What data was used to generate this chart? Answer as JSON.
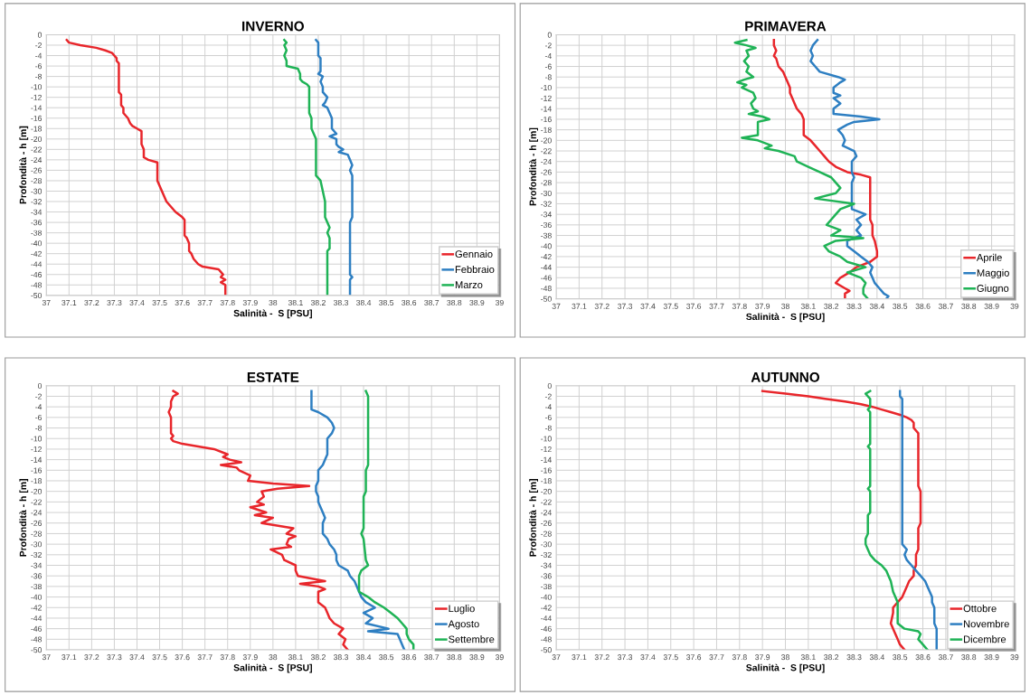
{
  "chart_data": [
    {
      "type": "line",
      "title": "INVERNO",
      "xlabel": "Salinità -  S [PSU]",
      "ylabel": "Profondità - h [m]",
      "xlim": [
        37,
        39
      ],
      "ylim": [
        -50,
        0
      ],
      "xticks": [
        37,
        37.1,
        37.2,
        37.3,
        37.4,
        37.5,
        37.6,
        37.7,
        37.8,
        37.9,
        38,
        38.1,
        38.2,
        38.3,
        38.4,
        38.5,
        38.6,
        38.7,
        38.8,
        38.9,
        39
      ],
      "yticks": [
        0,
        -2,
        -4,
        -6,
        -8,
        -10,
        -12,
        -14,
        -16,
        -18,
        -20,
        -22,
        -24,
        -26,
        -28,
        -30,
        -32,
        -34,
        -36,
        -38,
        -40,
        -42,
        -44,
        -46,
        -48,
        -50
      ],
      "grid": true,
      "legend": "bottom right",
      "marker": "none",
      "line_style": "solid",
      "series": [
        {
          "name": "Gennaio",
          "color": "#e8262b",
          "x": [
            37.09,
            37.1,
            37.15,
            37.22,
            37.26,
            37.29,
            37.3,
            37.31,
            37.31,
            37.32,
            37.32,
            37.32,
            37.33,
            37.33,
            37.34,
            37.34,
            37.36,
            37.37,
            37.38,
            37.4,
            37.42,
            37.42,
            37.43,
            37.43,
            37.45,
            37.49,
            37.49,
            37.5,
            37.51,
            37.52,
            37.53,
            37.55,
            37.57,
            37.6,
            37.61,
            37.61,
            37.62,
            37.63,
            37.63,
            37.64,
            37.65,
            37.67,
            37.69,
            37.76,
            37.77,
            37.78,
            37.77,
            37.79,
            37.77,
            37.79,
            37.79
          ],
          "values": [
            -1,
            -1.5,
            -2,
            -2.5,
            -3,
            -3.5,
            -4,
            -4.5,
            -5,
            -5.5,
            -8,
            -11,
            -11.5,
            -13.5,
            -14,
            -15,
            -16,
            -17,
            -17.5,
            -18,
            -18.5,
            -21,
            -22,
            -23.5,
            -24,
            -24.5,
            -28,
            -29,
            -30,
            -31,
            -32,
            -33,
            -34,
            -35,
            -35.5,
            -38.5,
            -39,
            -40,
            -41.5,
            -42,
            -43,
            -44,
            -44.5,
            -45,
            -45.5,
            -46,
            -46.5,
            -47,
            -47.5,
            -48,
            -50
          ]
        },
        {
          "name": "Febbraio",
          "color": "#2e7fc2",
          "x": [
            38.19,
            38.2,
            38.2,
            38.21,
            38.21,
            38.2,
            38.22,
            38.21,
            38.22,
            38.22,
            38.24,
            38.23,
            38.22,
            38.24,
            38.25,
            38.26,
            38.26,
            38.28,
            38.25,
            38.28,
            38.28,
            38.29,
            38.31,
            38.29,
            38.33,
            38.34,
            38.35,
            38.34,
            38.35,
            38.35,
            38.35,
            38.34,
            38.34,
            38.35,
            38.34,
            38.34
          ],
          "values": [
            -1,
            -1.5,
            -4,
            -4.5,
            -7,
            -7.5,
            -8,
            -9,
            -10,
            -11,
            -12,
            -13,
            -13.5,
            -14,
            -15,
            -16,
            -18,
            -19,
            -19.5,
            -20,
            -21,
            -21.5,
            -22,
            -22.5,
            -23,
            -24,
            -25,
            -26,
            -27,
            -28,
            -35,
            -36,
            -46,
            -46.5,
            -47,
            -50
          ]
        },
        {
          "name": "Marzo",
          "color": "#1fb356",
          "x": [
            38.05,
            38.06,
            38.05,
            38.06,
            38.05,
            38.06,
            38.06,
            38.08,
            38.11,
            38.12,
            38.12,
            38.13,
            38.15,
            38.16,
            38.16,
            38.17,
            38.17,
            38.18,
            38.19,
            38.19,
            38.21,
            38.22,
            38.23,
            38.23,
            38.24,
            38.25,
            38.24,
            38.25,
            38.25,
            38.24,
            38.24
          ],
          "values": [
            -1,
            -1.5,
            -2,
            -3,
            -4,
            -5,
            -6,
            -6.2,
            -6.5,
            -7.5,
            -8.5,
            -9,
            -9.5,
            -10,
            -15,
            -16,
            -18,
            -19,
            -20,
            -27,
            -28,
            -30,
            -32,
            -35,
            -36,
            -37,
            -38,
            -39,
            -41,
            -41.5,
            -50
          ]
        }
      ]
    },
    {
      "type": "line",
      "title": "PRIMAVERA",
      "xlabel": "Salinità -  S [PSU]",
      "ylabel": "Profondità - h [m]",
      "xlim": [
        37,
        39
      ],
      "ylim": [
        -50,
        0
      ],
      "xticks": [
        37,
        37.1,
        37.2,
        37.3,
        37.4,
        37.5,
        37.6,
        37.7,
        37.8,
        37.9,
        38,
        38.1,
        38.2,
        38.3,
        38.4,
        38.5,
        38.6,
        38.7,
        38.8,
        38.9,
        39
      ],
      "yticks": [
        0,
        -2,
        -4,
        -6,
        -8,
        -10,
        -12,
        -14,
        -16,
        -18,
        -20,
        -22,
        -24,
        -26,
        -28,
        -30,
        -32,
        -34,
        -36,
        -38,
        -40,
        -42,
        -44,
        -46,
        -48,
        -50
      ],
      "grid": true,
      "legend": "bottom right",
      "marker": "none",
      "line_style": "solid",
      "series": [
        {
          "name": "Aprile",
          "color": "#e8262b",
          "x": [
            37.95,
            37.95,
            37.96,
            37.95,
            37.96,
            37.97,
            37.99,
            38.0,
            38.01,
            38.02,
            38.02,
            38.03,
            38.04,
            38.05,
            38.07,
            38.08,
            38.08,
            38.11,
            38.13,
            38.15,
            38.17,
            38.19,
            38.22,
            38.27,
            38.33,
            38.37,
            38.37,
            38.37,
            38.38,
            38.38,
            38.39,
            38.4,
            38.4,
            38.37,
            38.31,
            38.28,
            38.24,
            38.22,
            38.26,
            38.28,
            38.26,
            38.26
          ],
          "values": [
            -1,
            -2,
            -3,
            -4,
            -4.5,
            -6,
            -7,
            -8,
            -9,
            -10,
            -11,
            -12,
            -13,
            -14,
            -15,
            -16,
            -19,
            -20,
            -21,
            -22,
            -23,
            -24,
            -25,
            -26,
            -26.5,
            -27,
            -33,
            -35,
            -36,
            -38,
            -39,
            -41,
            -42,
            -43,
            -44,
            -45,
            -46,
            -47,
            -48,
            -48.5,
            -49,
            -50
          ]
        },
        {
          "name": "Maggio",
          "color": "#2e7fc2",
          "x": [
            38.14,
            38.12,
            38.11,
            38.12,
            38.11,
            38.13,
            38.15,
            38.23,
            38.26,
            38.24,
            38.21,
            38.21,
            38.24,
            38.21,
            38.24,
            38.21,
            38.21,
            38.33,
            38.41,
            38.3,
            38.27,
            38.23,
            38.25,
            38.26,
            38.25,
            38.3,
            38.31,
            38.29,
            38.29,
            38.3,
            38.29,
            38.29,
            38.35,
            38.31,
            38.33,
            38.31,
            38.33,
            38.27,
            38.27,
            38.3,
            38.33,
            38.36,
            38.38,
            38.37,
            38.38,
            38.39,
            38.41,
            38.43,
            38.45,
            38.44
          ],
          "values": [
            -1,
            -2,
            -3,
            -4,
            -5,
            -6,
            -7,
            -8,
            -8.5,
            -9,
            -10,
            -11,
            -11.5,
            -12,
            -13,
            -14,
            -15,
            -15.5,
            -16,
            -16.5,
            -17,
            -18,
            -19,
            -20,
            -21,
            -22,
            -23,
            -24,
            -26,
            -27,
            -28,
            -33,
            -34,
            -35,
            -36,
            -37,
            -38,
            -39,
            -40,
            -41,
            -42,
            -43,
            -44,
            -45,
            -46,
            -47,
            -48,
            -49,
            -49.5,
            -50
          ]
        },
        {
          "name": "Giugno",
          "color": "#1fb356",
          "x": [
            37.83,
            37.78,
            37.83,
            37.87,
            37.83,
            37.84,
            37.82,
            37.84,
            37.83,
            37.86,
            37.82,
            37.79,
            37.83,
            37.81,
            37.86,
            37.87,
            37.85,
            37.86,
            37.88,
            37.84,
            37.9,
            37.93,
            37.88,
            37.88,
            37.81,
            37.88,
            37.94,
            37.91,
            37.97,
            38.04,
            38.05,
            38.1,
            38.15,
            38.2,
            38.22,
            38.24,
            38.22,
            38.13,
            38.3,
            38.24,
            38.22,
            38.2,
            38.18,
            38.24,
            38.2,
            38.34,
            38.22,
            38.17,
            38.19,
            38.24,
            38.27,
            38.35,
            38.27,
            38.33,
            38.35,
            38.34,
            38.34,
            38.36
          ],
          "values": [
            -1,
            -1.5,
            -2,
            -2.5,
            -3,
            -4,
            -5,
            -6,
            -7,
            -8,
            -8.5,
            -9,
            -9.5,
            -10,
            -11,
            -12,
            -13,
            -14,
            -14.5,
            -15,
            -15.5,
            -16,
            -16.5,
            -19,
            -19.5,
            -20,
            -21,
            -21.5,
            -22,
            -23,
            -24,
            -25,
            -26,
            -27,
            -28,
            -29,
            -30,
            -31,
            -32,
            -33,
            -34,
            -35,
            -36,
            -37,
            -38,
            -38.5,
            -39,
            -40,
            -41,
            -42,
            -43,
            -44,
            -45,
            -46,
            -47,
            -48,
            -49,
            -50
          ]
        }
      ]
    },
    {
      "type": "line",
      "title": "ESTATE",
      "xlabel": "Salinità -  S [PSU]",
      "ylabel": "Profondità - h [m]",
      "xlim": [
        37,
        39
      ],
      "ylim": [
        -50,
        0
      ],
      "xticks": [
        37,
        37.1,
        37.2,
        37.3,
        37.4,
        37.5,
        37.6,
        37.7,
        37.8,
        37.9,
        38,
        38.1,
        38.2,
        38.3,
        38.4,
        38.5,
        38.6,
        38.7,
        38.8,
        38.9,
        39
      ],
      "yticks": [
        0,
        -2,
        -4,
        -6,
        -8,
        -10,
        -12,
        -14,
        -16,
        -18,
        -20,
        -22,
        -24,
        -26,
        -28,
        -30,
        -32,
        -34,
        -36,
        -38,
        -40,
        -42,
        -44,
        -46,
        -48,
        -50
      ],
      "grid": true,
      "legend": "bottom right",
      "marker": "none",
      "line_style": "solid",
      "series": [
        {
          "name": "Luglio",
          "color": "#e8262b",
          "x": [
            37.56,
            37.58,
            37.56,
            37.55,
            37.55,
            37.54,
            37.55,
            37.55,
            37.56,
            37.55,
            37.56,
            37.6,
            37.74,
            37.8,
            37.78,
            37.81,
            37.86,
            37.77,
            37.84,
            37.85,
            37.9,
            37.89,
            38.0,
            38.16,
            38.02,
            37.95,
            37.96,
            37.93,
            37.96,
            37.9,
            37.97,
            37.92,
            38.0,
            37.95,
            38.09,
            38.06,
            38.1,
            38.07,
            38.06,
            38.08,
            37.99,
            38.04,
            38.05,
            38.1,
            38.1,
            38.11,
            38.23,
            38.12,
            38.2,
            38.23,
            38.2,
            38.2,
            38.2,
            38.23,
            38.24,
            38.25,
            38.27,
            38.31,
            38.29,
            38.32,
            38.31,
            38.33
          ],
          "values": [
            -1,
            -1.5,
            -2,
            -3,
            -4,
            -5,
            -6,
            -9,
            -9.5,
            -10,
            -10.5,
            -11,
            -12,
            -13,
            -13.5,
            -14,
            -14.5,
            -15,
            -15.5,
            -16,
            -17,
            -18,
            -18.5,
            -19,
            -19.5,
            -20,
            -21,
            -22,
            -22.5,
            -23,
            -24,
            -24.5,
            -25,
            -26,
            -27,
            -28,
            -28.5,
            -29,
            -30,
            -30.5,
            -31,
            -32,
            -33,
            -34,
            -35,
            -36,
            -37,
            -37.5,
            -38,
            -38.5,
            -39,
            -40,
            -41,
            -42,
            -43,
            -44,
            -45,
            -46,
            -47,
            -48,
            -49,
            -50
          ]
        },
        {
          "name": "Agosto",
          "color": "#2e7fc2",
          "x": [
            38.17,
            38.17,
            38.2,
            38.24,
            38.26,
            38.27,
            38.26,
            38.24,
            38.24,
            38.24,
            38.23,
            38.22,
            38.2,
            38.2,
            38.2,
            38.19,
            38.19,
            38.2,
            38.2,
            38.21,
            38.22,
            38.23,
            38.22,
            38.22,
            38.24,
            38.25,
            38.27,
            38.28,
            38.28,
            38.29,
            38.33,
            38.34,
            38.36,
            38.37,
            38.38,
            38.39,
            38.41,
            38.45,
            38.4,
            38.44,
            38.41,
            38.51,
            38.42,
            38.55,
            38.56,
            38.57,
            38.58
          ],
          "values": [
            -1,
            -4.5,
            -5,
            -6,
            -7,
            -8,
            -9,
            -10,
            -12,
            -13,
            -14,
            -15,
            -16,
            -17,
            -18,
            -19,
            -20,
            -21,
            -22,
            -23,
            -24,
            -25,
            -26,
            -28,
            -29,
            -30,
            -31,
            -32,
            -33,
            -34,
            -35,
            -36,
            -37,
            -38,
            -39,
            -40,
            -41,
            -42,
            -43,
            -44,
            -45,
            -46,
            -46.5,
            -47,
            -48,
            -49,
            -50
          ]
        },
        {
          "name": "Settembre",
          "color": "#1fb356",
          "x": [
            38.41,
            38.42,
            38.42,
            38.41,
            38.41,
            38.4,
            38.4,
            38.39,
            38.4,
            38.41,
            38.42,
            38.39,
            38.38,
            38.38,
            38.42,
            38.45,
            38.49,
            38.52,
            38.55,
            38.57,
            38.59,
            38.59,
            38.6,
            38.62,
            38.62
          ],
          "values": [
            -1,
            -2,
            -15,
            -16,
            -20,
            -21,
            -27,
            -28,
            -29,
            -33,
            -34,
            -35,
            -36,
            -39,
            -40,
            -41,
            -42,
            -43,
            -44,
            -45,
            -46,
            -47,
            -48,
            -49,
            -50
          ]
        }
      ]
    },
    {
      "type": "line",
      "title": "AUTUNNO",
      "xlabel": "Salinità -  S [PSU]",
      "ylabel": "Profondità - h [m]",
      "xlim": [
        37,
        39
      ],
      "ylim": [
        -50,
        0
      ],
      "xticks": [
        37,
        37.1,
        37.2,
        37.3,
        37.4,
        37.5,
        37.6,
        37.7,
        37.8,
        37.9,
        38,
        38.1,
        38.2,
        38.3,
        38.4,
        38.5,
        38.6,
        38.7,
        38.8,
        38.9,
        39
      ],
      "yticks": [
        0,
        -2,
        -4,
        -6,
        -8,
        -10,
        -12,
        -14,
        -16,
        -18,
        -20,
        -22,
        -24,
        -26,
        -28,
        -30,
        -32,
        -34,
        -36,
        -38,
        -40,
        -42,
        -44,
        -46,
        -48,
        -50
      ],
      "grid": true,
      "legend": "bottom right",
      "marker": "none",
      "line_style": "solid",
      "series": [
        {
          "name": "Ottobre",
          "color": "#e8262b",
          "x": [
            37.9,
            38.0,
            38.1,
            38.18,
            38.26,
            38.33,
            38.38,
            38.42,
            38.46,
            38.5,
            38.53,
            38.55,
            38.56,
            38.56,
            38.58,
            38.58,
            38.59,
            38.59,
            38.58,
            38.58,
            38.57,
            38.57,
            38.56,
            38.56,
            38.54,
            38.53,
            38.52,
            38.51,
            38.49,
            38.47,
            38.47,
            38.46,
            38.47,
            38.48,
            38.49,
            38.5,
            38.52
          ],
          "values": [
            -1,
            -1.5,
            -2,
            -2.5,
            -3,
            -3.5,
            -4,
            -4.5,
            -5,
            -5.5,
            -6,
            -6.5,
            -7,
            -8,
            -9,
            -19,
            -20,
            -26,
            -27,
            -31,
            -32,
            -34,
            -35,
            -36,
            -37,
            -38,
            -39,
            -40,
            -41,
            -42,
            -43,
            -45,
            -46,
            -47,
            -48,
            -49,
            -50
          ]
        },
        {
          "name": "Novembre",
          "color": "#2e7fc2",
          "x": [
            38.5,
            38.5,
            38.51,
            38.51,
            38.53,
            38.52,
            38.53,
            38.55,
            38.57,
            38.59,
            38.61,
            38.62,
            38.63,
            38.64,
            38.64,
            38.65,
            38.65,
            38.66,
            38.66
          ],
          "values": [
            -1,
            -2,
            -2.5,
            -30,
            -31,
            -32,
            -33,
            -34,
            -35,
            -36,
            -37,
            -38,
            -39,
            -40,
            -41,
            -42,
            -45,
            -46,
            -50
          ]
        },
        {
          "name": "Dicembre",
          "color": "#1fb356",
          "x": [
            38.37,
            38.35,
            38.36,
            38.37,
            38.37,
            38.36,
            38.37,
            38.37,
            38.36,
            38.37,
            38.37,
            38.36,
            38.37,
            38.37,
            38.36,
            38.36,
            38.35,
            38.35,
            38.36,
            38.37,
            38.39,
            38.42,
            38.44,
            38.45,
            38.46,
            38.47,
            38.48,
            38.49,
            38.49,
            38.52,
            38.58,
            38.59,
            38.58,
            38.6,
            38.62
          ],
          "values": [
            -1,
            -1.5,
            -2,
            -2.5,
            -4,
            -4.5,
            -5,
            -11,
            -11.5,
            -12,
            -19,
            -19.5,
            -20,
            -24,
            -24.5,
            -28,
            -29,
            -30,
            -31,
            -32,
            -33,
            -34,
            -35,
            -36,
            -37,
            -39,
            -40,
            -41,
            -45,
            -46,
            -46.5,
            -47,
            -48,
            -49,
            -50
          ]
        }
      ]
    }
  ]
}
